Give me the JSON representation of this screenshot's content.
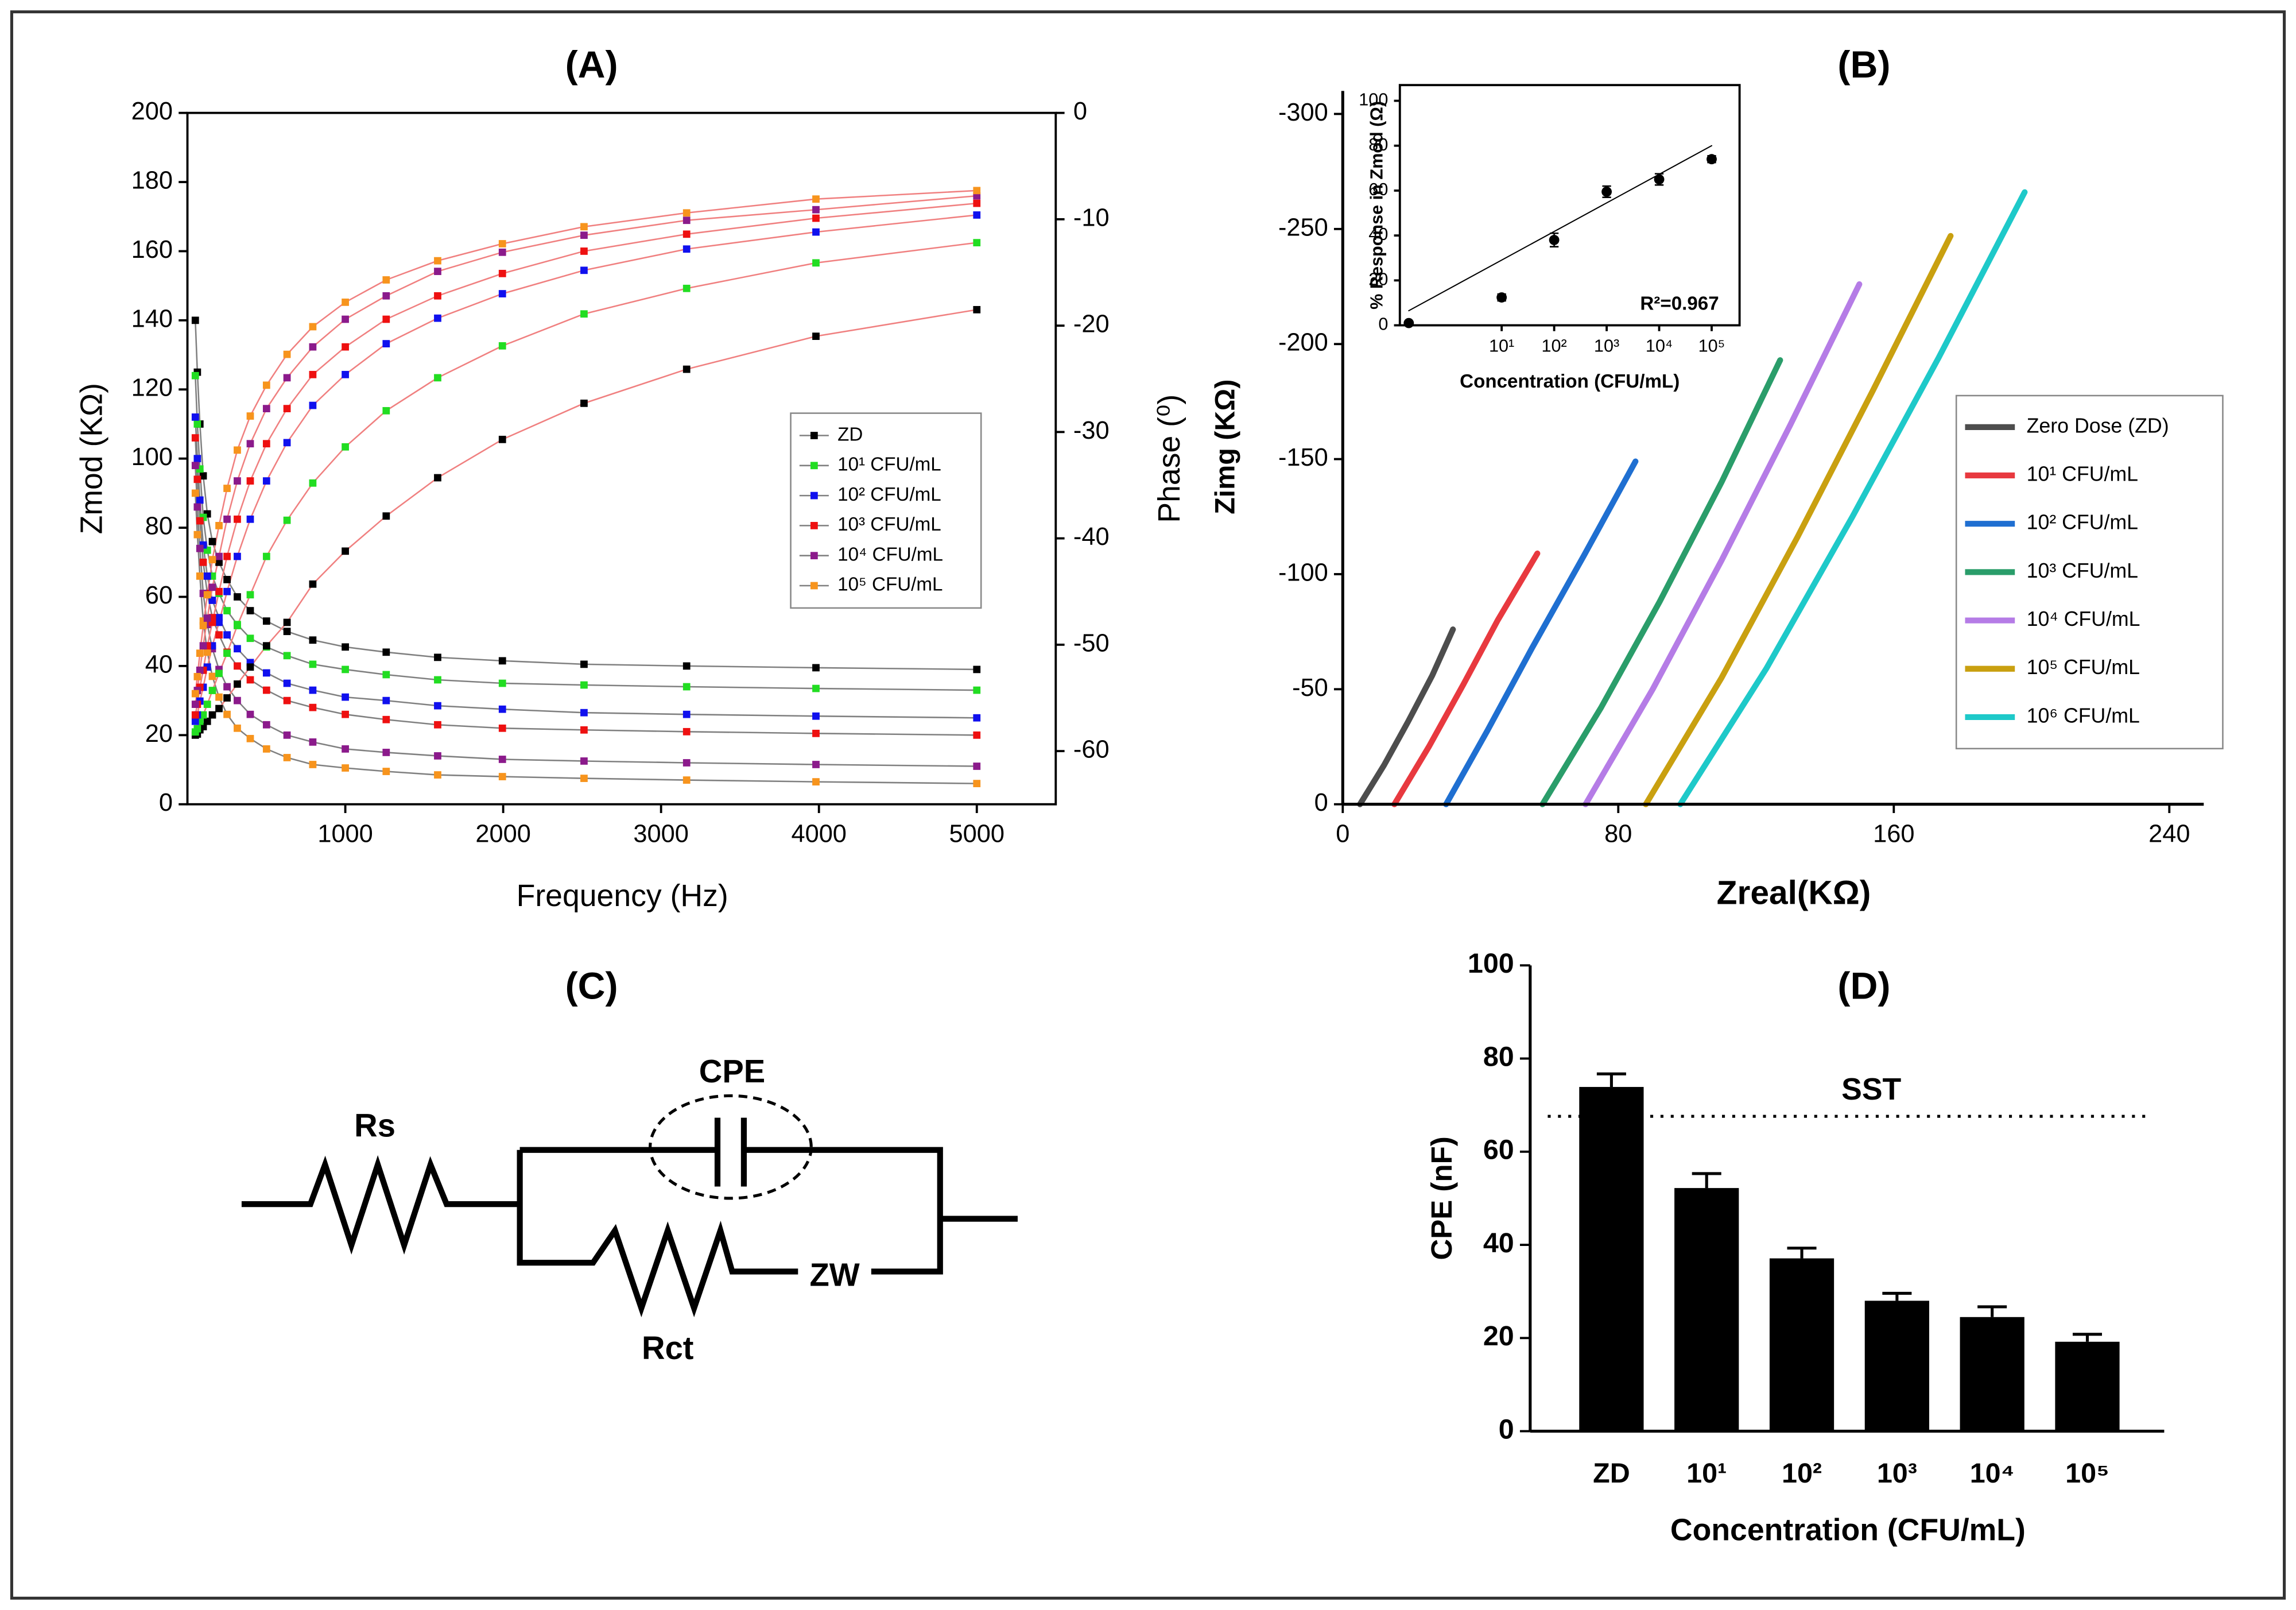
{
  "chart_data": [
    {
      "type": "line",
      "title": "(A)",
      "x_label": "Frequency (Hz)",
      "y_label": "Zmod (KΩ)",
      "y2_label": "Phase (⁰)",
      "x": [
        5000,
        3981,
        3162,
        2512,
        1995,
        1585,
        1259,
        1000,
        794,
        631,
        501,
        398,
        316,
        251,
        200,
        158,
        126,
        100,
        79,
        63,
        50
      ],
      "xlim": [
        0,
        5500
      ],
      "xticks": [
        1000,
        2000,
        3000,
        4000,
        5000
      ],
      "ylim": [
        0,
        200
      ],
      "yticks": [
        0,
        20,
        40,
        60,
        80,
        100,
        120,
        140,
        160,
        180,
        200
      ],
      "y2lim": [
        -65,
        0
      ],
      "y2ticks": [
        0,
        -10,
        -20,
        -30,
        -40,
        -50,
        -60
      ],
      "markers": true,
      "line_color": "#808080",
      "y2_line_color": "#f08080",
      "legend": "center-right",
      "series": [
        {
          "name": "ZD",
          "color": "#000000",
          "values": [
            39,
            39.5,
            40,
            40.5,
            41.5,
            42.5,
            44,
            45.5,
            47.5,
            50,
            53,
            56,
            60,
            65,
            70,
            76,
            84,
            95,
            110,
            125,
            140
          ]
        },
        {
          "name": "10¹ CFU/mL",
          "color": "#22dd22",
          "values": [
            33,
            33.5,
            34,
            34.5,
            35,
            36,
            37.5,
            39,
            40.5,
            43,
            45.5,
            48,
            52,
            56,
            61,
            66,
            73.5,
            83,
            97,
            110,
            124
          ]
        },
        {
          "name": "10² CFU/mL",
          "color": "#1010ee",
          "values": [
            25,
            25.5,
            26,
            26.5,
            27.5,
            28.5,
            30,
            31,
            33,
            35,
            38,
            41,
            45,
            49,
            54,
            59,
            66,
            75,
            88,
            100,
            112
          ]
        },
        {
          "name": "10³ CFU/mL",
          "color": "#ee1010",
          "values": [
            20,
            20.5,
            21,
            21.5,
            22,
            23,
            24.5,
            26,
            28,
            30,
            33,
            36,
            40,
            44,
            49,
            54,
            61,
            70,
            82,
            94,
            106
          ]
        },
        {
          "name": "10⁴ CFU/mL",
          "color": "#8b1a8b",
          "values": [
            11,
            11.5,
            12,
            12.5,
            13,
            14,
            15,
            16,
            18,
            20,
            23,
            26,
            30,
            34,
            39,
            45,
            52,
            61,
            74,
            86,
            98
          ]
        },
        {
          "name": "10⁵ CFU/mL",
          "color": "#f7941d",
          "values": [
            6,
            6.5,
            7,
            7.5,
            8,
            8.5,
            9.5,
            10.5,
            11.5,
            13.5,
            16,
            19,
            22,
            26,
            31,
            37,
            44,
            53,
            66,
            78,
            90
          ]
        },
        {
          "color": "#000000",
          "axis": "y2",
          "values": [
            -18.5,
            -21.0,
            -24.1,
            -27.3,
            -30.7,
            -34.3,
            -37.9,
            -41.2,
            -44.3,
            -47.9,
            -50.1,
            -52.1,
            -53.7,
            -55.0,
            -56.0,
            -56.6,
            -57.2,
            -57.7,
            -58.0,
            -58.4,
            -58.5
          ]
        },
        {
          "color": "#22dd22",
          "axis": "y2",
          "values": [
            -12.2,
            -14.1,
            -16.5,
            -18.9,
            -21.9,
            -24.9,
            -28.0,
            -31.4,
            -34.8,
            -38.3,
            -41.7,
            -45.3,
            -48.2,
            -50.8,
            -52.7,
            -54.3,
            -55.6,
            -56.6,
            -57.2,
            -57.9,
            -58.2
          ]
        },
        {
          "color": "#1010ee",
          "axis": "y2",
          "values": [
            -9.6,
            -11.2,
            -12.8,
            -14.8,
            -17.0,
            -19.3,
            -21.7,
            -24.6,
            -27.5,
            -31.0,
            -34.6,
            -38.2,
            -41.7,
            -45.0,
            -47.9,
            -50.1,
            -52.1,
            -54.0,
            -55.3,
            -56.6,
            -57.2
          ]
        },
        {
          "color": "#ee1010",
          "axis": "y2",
          "values": [
            -8.5,
            -9.9,
            -11.4,
            -13.0,
            -15.1,
            -17.2,
            -19.4,
            -22.0,
            -24.6,
            -27.8,
            -31.1,
            -34.6,
            -38.2,
            -41.7,
            -45.0,
            -47.9,
            -50.1,
            -52.4,
            -54.0,
            -55.6,
            -56.6
          ]
        },
        {
          "color": "#8b1a8b",
          "axis": "y2",
          "values": [
            -7.8,
            -9.1,
            -10.1,
            -11.5,
            -13.1,
            -14.9,
            -17.2,
            -19.4,
            -22.0,
            -24.9,
            -27.8,
            -31.1,
            -34.6,
            -38.2,
            -41.7,
            -44.6,
            -47.5,
            -50.1,
            -52.4,
            -54.3,
            -55.6
          ]
        },
        {
          "color": "#f7941d",
          "axis": "y2",
          "values": [
            -7.3,
            -8.1,
            -9.4,
            -10.7,
            -12.3,
            -13.9,
            -15.7,
            -17.8,
            -20.1,
            -22.7,
            -25.6,
            -28.5,
            -31.7,
            -35.3,
            -38.8,
            -42.0,
            -45.3,
            -48.2,
            -50.8,
            -53.0,
            -54.6
          ]
        }
      ]
    },
    {
      "type": "line",
      "title": "(B)",
      "x_label": "Zreal(KΩ)",
      "y_label": "Zimg (KΩ)",
      "xlim": [
        0,
        250
      ],
      "xticks": [
        0,
        80,
        160,
        240
      ],
      "ylim": [
        0,
        -310
      ],
      "yticks": [
        0,
        -50,
        -100,
        -150,
        -200,
        -250,
        -300
      ],
      "legend": "center-right",
      "series": [
        {
          "name": "Zero Dose (ZD)",
          "color": "#4d4d4d",
          "x": [
            5,
            12,
            19,
            26,
            32
          ],
          "values": [
            0,
            -17,
            -36,
            -56,
            -76
          ]
        },
        {
          "name": "10¹ CFU/mL",
          "color": "#e8393f",
          "x": [
            15,
            25,
            35,
            45,
            56.5
          ],
          "values": [
            0,
            -25,
            -52,
            -80,
            -109
          ]
        },
        {
          "name": "10² CFU/mL",
          "color": "#1f6fd1",
          "x": [
            30,
            42,
            55,
            70,
            85
          ],
          "values": [
            0,
            -32,
            -68,
            -108,
            -149
          ]
        },
        {
          "name": "10³ CFU/mL",
          "color": "#2a9d6a",
          "x": [
            58,
            75,
            92,
            110,
            127
          ],
          "values": [
            0,
            -42,
            -88,
            -140,
            -193
          ]
        },
        {
          "name": "10⁴ CFU/mL",
          "color": "#b57ce6",
          "x": [
            70.5,
            90,
            110,
            130,
            150
          ],
          "values": [
            0,
            -50,
            -106,
            -165,
            -226
          ]
        },
        {
          "name": "10⁵ CFU/mL",
          "color": "#c9a010",
          "x": [
            88,
            110,
            132,
            154,
            176.5
          ],
          "values": [
            0,
            -55,
            -116,
            -180,
            -247
          ]
        },
        {
          "name": "10⁶ CFU/mL",
          "color": "#1ec9c9",
          "x": [
            98,
            123,
            148,
            173,
            198
          ],
          "values": [
            0,
            -59,
            -125,
            -194,
            -266
          ]
        }
      ]
    },
    {
      "type": "scatter",
      "x_label": "Concentration (CFU/mL)",
      "y_label": "% Response in Zmod (Ω)",
      "xlog": true,
      "xlim": [
        0.115,
        340000
      ],
      "xticks": [
        {
          "value": 10,
          "label": "10¹"
        },
        {
          "value": 100,
          "label": "10²"
        },
        {
          "value": 1000,
          "label": "10³"
        },
        {
          "value": 10000,
          "label": "10⁴"
        },
        {
          "value": 100000,
          "label": "10⁵"
        }
      ],
      "ylim": [
        0,
        107
      ],
      "yticks": [
        0,
        20,
        40,
        60,
        80,
        100
      ],
      "series": [
        {
          "color": "#000000",
          "x": [
            0.17,
            10,
            100,
            1000,
            10000,
            100000
          ],
          "values": [
            1,
            12.4,
            38,
            59.5,
            65,
            74
          ],
          "errors": [
            0,
            1.5,
            3,
            2.5,
            2.5,
            1.5
          ]
        }
      ],
      "fit": {
        "x": [
          0.17,
          100000
        ],
        "values": [
          6.5,
          80
        ]
      },
      "annotation": "R²=0.967"
    },
    {
      "type": "bar",
      "title": "(D)",
      "x_label": "Concentration (CFU/mL)",
      "y_label": "CPE (nF)",
      "categories": [
        "ZD",
        "10¹",
        "10²",
        "10³",
        "10⁴",
        "10⁵"
      ],
      "values": [
        73.9,
        52.2,
        37.1,
        28,
        24.5,
        19.2
      ],
      "errors": [
        2.8,
        3.1,
        2.2,
        1.6,
        2.2,
        1.6
      ],
      "color": "#000000",
      "ylim": [
        0,
        100
      ],
      "yticks": [
        0,
        20,
        40,
        60,
        80,
        100
      ],
      "reference_line": {
        "label": "SST",
        "value": 67.6
      }
    }
  ],
  "diagram": {
    "title": "(C)",
    "capacitor": "CPE",
    "series_resistor": "Rs",
    "charge_transfer_resistor": "Rct",
    "warburg": "ZW"
  }
}
